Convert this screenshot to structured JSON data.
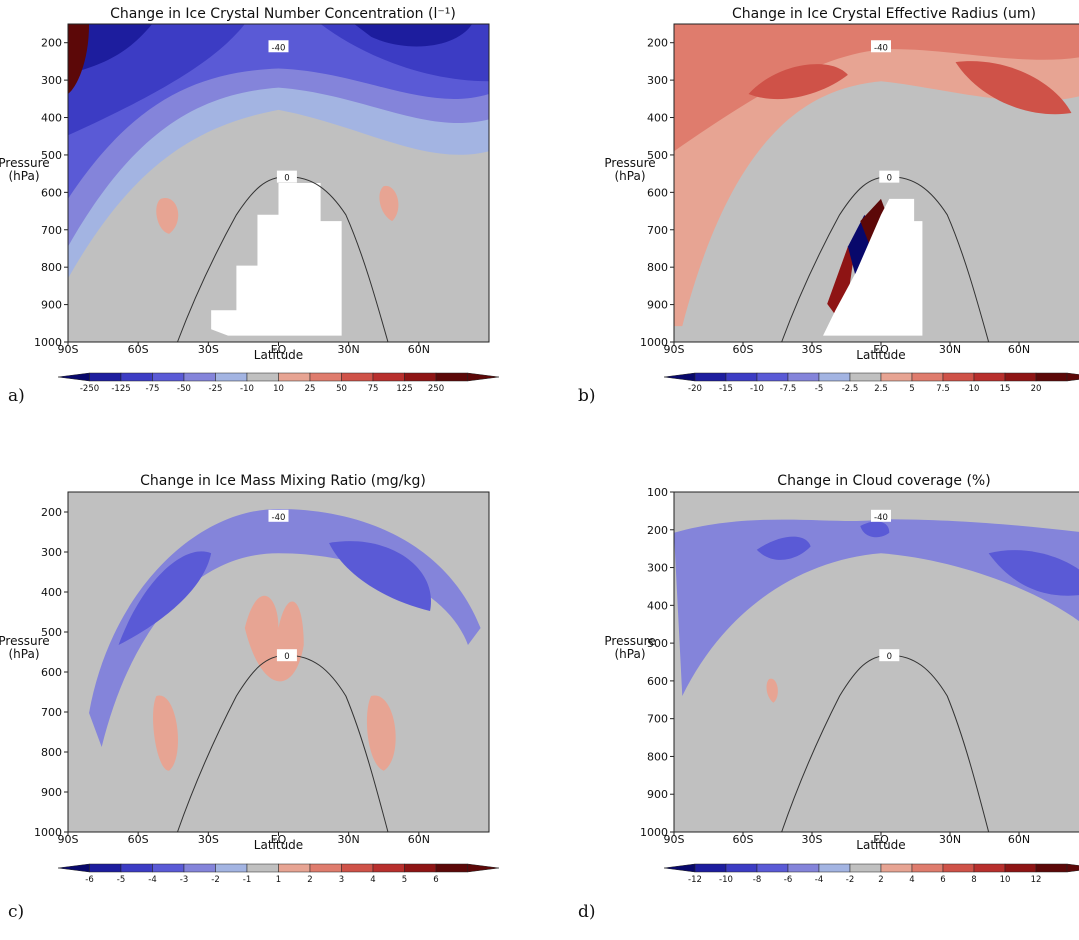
{
  "chart_data": [
    {
      "type": "contour",
      "id": "a",
      "title": "Change in Ice Crystal Number Concentration (l⁻¹)",
      "xlabel": "Latitude",
      "ylabel": "Pressure\n(hPa)",
      "x_ticks": [
        "90S",
        "60S",
        "30S",
        "EQ",
        "30N",
        "60N"
      ],
      "y_ticks": [
        "200",
        "300",
        "400",
        "500",
        "600",
        "700",
        "800",
        "900",
        "1000"
      ],
      "ylim": [
        150,
        1000
      ],
      "colorbar": [
        "-250",
        "-125",
        "-75",
        "-50",
        "-25",
        "-10",
        "10",
        "25",
        "50",
        "75",
        "125",
        "250"
      ],
      "contours": [
        {
          "label": "-40"
        },
        {
          "label": "0"
        }
      ],
      "panel_label": "a)"
    },
    {
      "type": "contour",
      "id": "b",
      "title": "Change in Ice Crystal Effective Radius (um)",
      "xlabel": "Latitude",
      "ylabel": "Pressure\n(hPa)",
      "x_ticks": [
        "90S",
        "60S",
        "30S",
        "EQ",
        "30N",
        "60N"
      ],
      "y_ticks": [
        "200",
        "300",
        "400",
        "500",
        "600",
        "700",
        "800",
        "900",
        "1000"
      ],
      "ylim": [
        150,
        1000
      ],
      "colorbar": [
        "-20",
        "-15",
        "-10",
        "-7.5",
        "-5",
        "-2.5",
        "2.5",
        "5",
        "7.5",
        "10",
        "15",
        "20"
      ],
      "contours": [
        {
          "label": "-40"
        },
        {
          "label": "0"
        }
      ],
      "panel_label": "b)"
    },
    {
      "type": "contour",
      "id": "c",
      "title": "Change in Ice Mass Mixing Ratio (mg/kg)",
      "xlabel": "Latitude",
      "ylabel": "Pressure\n(hPa)",
      "x_ticks": [
        "90S",
        "60S",
        "30S",
        "EQ",
        "30N",
        "60N"
      ],
      "y_ticks": [
        "200",
        "300",
        "400",
        "500",
        "600",
        "700",
        "800",
        "900",
        "1000"
      ],
      "ylim": [
        150,
        1000
      ],
      "colorbar": [
        "-6",
        "-5",
        "-4",
        "-3",
        "-2",
        "-1",
        "1",
        "2",
        "3",
        "4",
        "5",
        "6"
      ],
      "contours": [
        {
          "label": "-40"
        },
        {
          "label": "0"
        }
      ],
      "panel_label": "c)"
    },
    {
      "type": "contour",
      "id": "d",
      "title": "Change in Cloud coverage (%)",
      "xlabel": "Latitude",
      "ylabel": "Pressure\n(hPa)",
      "x_ticks": [
        "90S",
        "60S",
        "30S",
        "EQ",
        "30N",
        "60N"
      ],
      "y_ticks": [
        "100",
        "200",
        "300",
        "400",
        "500",
        "600",
        "700",
        "800",
        "900",
        "1000"
      ],
      "ylim": [
        100,
        1000
      ],
      "colorbar": [
        "-12",
        "-10",
        "-8",
        "-6",
        "-4",
        "-2",
        "2",
        "4",
        "6",
        "8",
        "10",
        "12"
      ],
      "contours": [
        {
          "label": "-40"
        },
        {
          "label": "0"
        }
      ],
      "panel_label": "d)"
    }
  ],
  "colors": {
    "neutral": "#c0c0c0",
    "blue": [
      "#08086b",
      "#1d1d9e",
      "#3c3cc4",
      "#5a5ad6",
      "#8484da",
      "#a3b4e2"
    ],
    "red": [
      "#e7a493",
      "#df7c6d",
      "#cf5248",
      "#b82f2d",
      "#8e1414",
      "#5c0808"
    ]
  }
}
